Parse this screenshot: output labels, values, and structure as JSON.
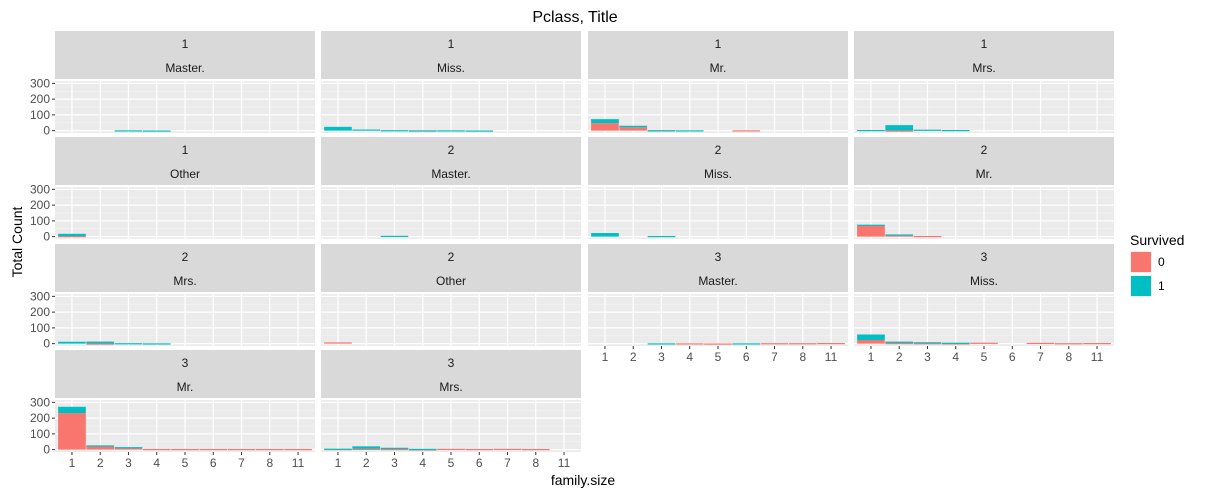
{
  "chart_data": {
    "type": "bar",
    "title": "Pclass, Title",
    "xlabel": "family.size",
    "ylabel": "Total Count",
    "categories": [
      "1",
      "2",
      "3",
      "4",
      "5",
      "6",
      "7",
      "8",
      "11"
    ],
    "ylim": [
      0,
      300
    ],
    "yticks": [
      0,
      100,
      200,
      300
    ],
    "stacked": true,
    "grid": true,
    "legend": {
      "title": "Survived",
      "position": "right",
      "entries": [
        {
          "name": "0",
          "color": "#F8766D"
        },
        {
          "name": "1",
          "color": "#00BFC4"
        }
      ]
    },
    "facets": [
      {
        "pclass": "1",
        "title": "Master.",
        "series": [
          {
            "name": "0",
            "values": [
              0,
              0,
              0,
              0,
              0,
              0,
              0,
              0,
              0
            ]
          },
          {
            "name": "1",
            "values": [
              0,
              0,
              2,
              1,
              0,
              0,
              0,
              0,
              0
            ]
          }
        ]
      },
      {
        "pclass": "1",
        "title": "Miss.",
        "series": [
          {
            "name": "0",
            "values": [
              0,
              0,
              0,
              1,
              0,
              0,
              0,
              0,
              0
            ]
          },
          {
            "name": "1",
            "values": [
              24,
              7,
              3,
              1,
              2,
              1,
              0,
              0,
              0
            ]
          }
        ]
      },
      {
        "pclass": "1",
        "title": "Mr.",
        "series": [
          {
            "name": "0",
            "values": [
              48,
              21,
              2,
              0,
              0,
              2,
              0,
              0,
              0
            ]
          },
          {
            "name": "1",
            "values": [
              25,
              10,
              1,
              2,
              0,
              0,
              0,
              0,
              0
            ]
          }
        ]
      },
      {
        "pclass": "1",
        "title": "Mrs.",
        "series": [
          {
            "name": "0",
            "values": [
              0,
              1,
              0,
              0,
              0,
              0,
              0,
              0,
              0
            ]
          },
          {
            "name": "1",
            "values": [
              4,
              34,
              6,
              4,
              0,
              0,
              0,
              0,
              0
            ]
          }
        ]
      },
      {
        "pclass": "1",
        "title": "Other",
        "series": [
          {
            "name": "0",
            "values": [
              4,
              0,
              0,
              0,
              0,
              0,
              0,
              0,
              0
            ]
          },
          {
            "name": "1",
            "values": [
              14,
              0,
              0,
              0,
              0,
              0,
              0,
              0,
              0
            ]
          }
        ]
      },
      {
        "pclass": "2",
        "title": "Master.",
        "series": [
          {
            "name": "0",
            "values": [
              0,
              0,
              0,
              0,
              0,
              0,
              0,
              0,
              0
            ]
          },
          {
            "name": "1",
            "values": [
              0,
              0,
              5,
              0,
              0,
              0,
              0,
              0,
              0
            ]
          }
        ]
      },
      {
        "pclass": "2",
        "title": "Miss.",
        "series": [
          {
            "name": "0",
            "values": [
              0,
              0,
              0,
              0,
              0,
              0,
              0,
              0,
              0
            ]
          },
          {
            "name": "1",
            "values": [
              23,
              0,
              4,
              0,
              0,
              0,
              0,
              0,
              0
            ]
          }
        ]
      },
      {
        "pclass": "2",
        "title": "Mr.",
        "series": [
          {
            "name": "0",
            "values": [
              73,
              12,
              4,
              0,
              0,
              0,
              0,
              0,
              0
            ]
          },
          {
            "name": "1",
            "values": [
              3,
              2,
              0,
              0,
              0,
              0,
              0,
              0,
              0
            ]
          }
        ]
      },
      {
        "pclass": "2",
        "title": "Mrs.",
        "series": [
          {
            "name": "0",
            "values": [
              0,
              1,
              0,
              0,
              0,
              0,
              0,
              0,
              0
            ]
          },
          {
            "name": "1",
            "values": [
              12,
              12,
              3,
              2,
              0,
              0,
              0,
              0,
              0
            ]
          }
        ]
      },
      {
        "pclass": "2",
        "title": "Other",
        "series": [
          {
            "name": "0",
            "values": [
              8,
              0,
              0,
              0,
              0,
              0,
              0,
              0,
              0
            ]
          },
          {
            "name": "1",
            "values": [
              0,
              0,
              0,
              0,
              0,
              0,
              0,
              0,
              0
            ]
          }
        ]
      },
      {
        "pclass": "3",
        "title": "Master.",
        "series": [
          {
            "name": "0",
            "values": [
              0,
              0,
              0,
              2,
              1,
              0,
              3,
              3,
              4
            ]
          },
          {
            "name": "1",
            "values": [
              0,
              0,
              2,
              0,
              0,
              2,
              0,
              0,
              0
            ]
          }
        ]
      },
      {
        "pclass": "3",
        "title": "Miss.",
        "series": [
          {
            "name": "0",
            "values": [
              23,
              4,
              3,
              2,
              6,
              0,
              5,
              3,
              4
            ]
          },
          {
            "name": "1",
            "values": [
              35,
              9,
              6,
              4,
              0,
              0,
              0,
              0,
              0
            ]
          }
        ]
      },
      {
        "pclass": "3",
        "title": "Mr.",
        "series": [
          {
            "name": "0",
            "values": [
              232,
              24,
              14,
              4,
              4,
              4,
              4,
              4,
              4
            ]
          },
          {
            "name": "1",
            "values": [
              40,
              3,
              2,
              0,
              0,
              0,
              0,
              0,
              0
            ]
          }
        ]
      },
      {
        "pclass": "3",
        "title": "Mrs.",
        "series": [
          {
            "name": "0",
            "values": [
              4,
              5,
              4,
              2,
              5,
              4,
              5,
              4,
              0
            ]
          },
          {
            "name": "1",
            "values": [
              2,
              16,
              8,
              3,
              0,
              0,
              0,
              0,
              0
            ]
          }
        ]
      }
    ]
  }
}
